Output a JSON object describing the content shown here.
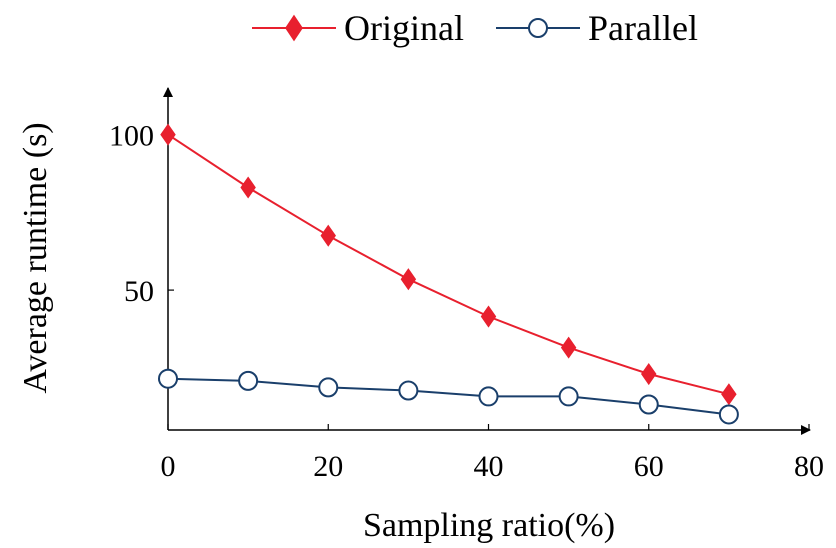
{
  "chart_data": {
    "type": "line",
    "xlabel": "Sampling ratio(%)",
    "ylabel": "Average runtime (s)",
    "x": [
      0,
      10,
      20,
      30,
      40,
      50,
      60,
      70
    ],
    "xlim": [
      0,
      80
    ],
    "ylim": [
      5,
      115
    ],
    "xticks": [
      0,
      20,
      40,
      60,
      80
    ],
    "yticks": [
      50,
      100
    ],
    "xtick_labels": [
      "0",
      "20",
      "40",
      "60",
      "80"
    ],
    "ytick_labels": [
      "50",
      "100"
    ],
    "legend_position": "top",
    "grid": false,
    "series": [
      {
        "name": "Original",
        "marker": "diamond",
        "color": "#e8202e",
        "values": [
          100,
          83,
          67.5,
          53.5,
          41.5,
          31.5,
          23,
          16.5
        ]
      },
      {
        "name": "Parallel",
        "marker": "circle-open",
        "color": "#1a3f6b",
        "values": [
          21.5,
          20.8,
          18.7,
          17.7,
          15.8,
          15.8,
          13.2,
          10
        ]
      }
    ]
  }
}
